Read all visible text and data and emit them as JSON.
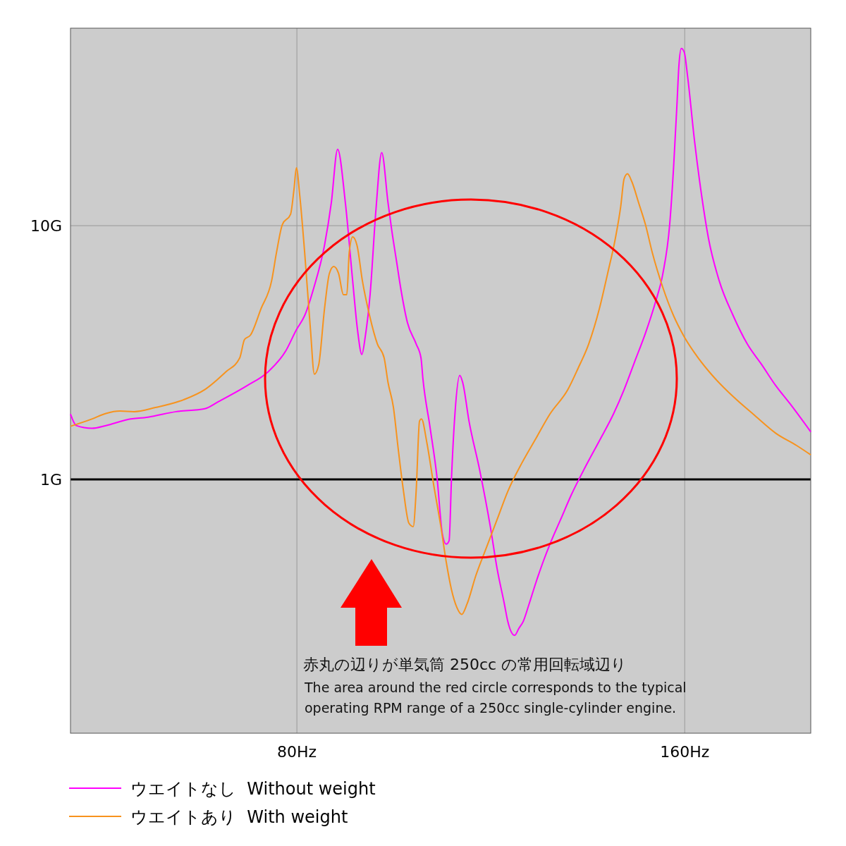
{
  "chart_data": {
    "type": "line",
    "xlim": [
      33.3,
      186
    ],
    "ylim": [
      0.1,
      60
    ],
    "log": "y",
    "grid": true,
    "legend": "bottom left",
    "marker": "none",
    "line_style": "solid",
    "xticks": [
      {
        "value": 80,
        "label": "80Hz"
      },
      {
        "value": 160,
        "label": "160Hz"
      }
    ],
    "yticks": [
      {
        "value": 1,
        "label": "1G"
      },
      {
        "value": 10,
        "label": "10G"
      }
    ],
    "ref_lines": [
      {
        "axis": "y",
        "value": 1,
        "color": "#000000"
      }
    ],
    "annotations": [
      "赤丸の辺りが単気筒 250cc の常用回転域辺り",
      "The area around the red circle corresponds to the typical operating RPM range of a 250cc single-cylinder engine."
    ],
    "series": [
      {
        "name": "ウエイトなし  Without weight",
        "color": "#ff00ff",
        "x": [
          33.3,
          34.5,
          37.7,
          40.6,
          45.0,
          49.3,
          55.1,
          61.0,
          63.9,
          69.7,
          74.0,
          77.7,
          79.9,
          81.6,
          83.5,
          85.7,
          87.1,
          88.4,
          90.0,
          91.5,
          92.5,
          93.4,
          94.1,
          95.1,
          96.3,
          97.5,
          98.8,
          99.6,
          100.5,
          101.4,
          102.8,
          104.6,
          105.6,
          106.0,
          107.5,
          108.9,
          110.0,
          110.8,
          111.4,
          111.9,
          112.6,
          113.6,
          114.2,
          115.5,
          117.7,
          119.9,
          121.3,
          122.8,
          123.5,
          124.9,
          125.8,
          126.7,
          127.9,
          129.3,
          130.8,
          132.2,
          134.4,
          136.6,
          139.5,
          142.4,
          145.3,
          147.5,
          149.7,
          151.9,
          154.0,
          155.5,
          156.9,
          157.7,
          158.4,
          158.8,
          159.3,
          159.9,
          160.6,
          162.0,
          163.5,
          164.9,
          167.1,
          170.0,
          172.9,
          175.9,
          178.8,
          181.7,
          186.0
        ],
        "values": [
          1.81,
          1.63,
          1.59,
          1.63,
          1.72,
          1.76,
          1.85,
          1.9,
          2.03,
          2.34,
          2.65,
          3.21,
          3.89,
          4.42,
          5.7,
          8.37,
          12.3,
          20.0,
          12.3,
          6.08,
          3.89,
          3.11,
          3.65,
          5.35,
          11.5,
          19.4,
          12.3,
          9.5,
          7.36,
          5.7,
          4.15,
          3.42,
          3.01,
          2.49,
          1.59,
          1.02,
          0.612,
          0.556,
          0.574,
          1.02,
          1.81,
          2.57,
          2.41,
          1.7,
          1.09,
          0.652,
          0.445,
          0.323,
          0.276,
          0.243,
          0.259,
          0.276,
          0.323,
          0.392,
          0.474,
          0.556,
          0.695,
          0.869,
          1.12,
          1.42,
          1.81,
          2.26,
          2.92,
          3.77,
          5.02,
          6.48,
          10.1,
          16.9,
          30.0,
          42.6,
          49.9,
          48.3,
          38.7,
          21.8,
          13.1,
          8.92,
          6.08,
          4.42,
          3.42,
          2.83,
          2.34,
          1.99,
          1.54
        ]
      },
      {
        "name": "ウエイトあり  With weight",
        "color": "#f7931e",
        "x": [
          33.3,
          37.7,
          40.6,
          43.5,
          46.4,
          50.8,
          56.6,
          61.0,
          65.3,
          68.2,
          69.2,
          70.4,
          72.6,
          74.8,
          75.8,
          77.0,
          78.7,
          79.4,
          79.9,
          80.6,
          81.6,
          82.8,
          83.6,
          84.5,
          85.7,
          86.7,
          87.6,
          88.6,
          89.6,
          90.3,
          90.8,
          91.5,
          92.4,
          93.5,
          95.0,
          96.6,
          98.0,
          98.8,
          99.9,
          100.9,
          102.0,
          103.1,
          104.0,
          104.6,
          105.3,
          105.7,
          106.8,
          108.2,
          109.7,
          110.8,
          111.9,
          113.0,
          114.0,
          115.1,
          116.9,
          119.1,
          121.3,
          123.5,
          126.4,
          129.3,
          132.2,
          135.9,
          138.0,
          140.2,
          142.4,
          144.1,
          145.7,
          146.8,
          147.5,
          148.2,
          149.1,
          150.5,
          151.9,
          153.3,
          155.5,
          157.7,
          159.9,
          162.8,
          165.7,
          170.0,
          174.4,
          178.8,
          183.1,
          186.0
        ],
        "values": [
          1.62,
          1.73,
          1.82,
          1.86,
          1.85,
          1.92,
          2.06,
          2.26,
          2.65,
          3.01,
          3.56,
          3.7,
          4.71,
          6.08,
          7.85,
          10.1,
          11.1,
          13.9,
          16.9,
          13.1,
          7.85,
          3.89,
          2.6,
          2.83,
          4.71,
          6.48,
          6.91,
          6.48,
          5.35,
          5.35,
          7.85,
          9.03,
          8.37,
          6.08,
          4.42,
          3.42,
          3.01,
          2.41,
          1.93,
          1.32,
          0.897,
          0.673,
          0.652,
          0.897,
          1.7,
          1.73,
          1.4,
          0.956,
          0.652,
          0.474,
          0.367,
          0.313,
          0.294,
          0.323,
          0.417,
          0.539,
          0.695,
          0.897,
          1.16,
          1.45,
          1.81,
          2.26,
          2.74,
          3.42,
          4.71,
          6.48,
          8.92,
          11.9,
          15.3,
          16.0,
          14.9,
          12.3,
          10.1,
          7.85,
          5.7,
          4.42,
          3.65,
          3.01,
          2.57,
          2.12,
          1.79,
          1.52,
          1.36,
          1.25
        ]
      }
    ]
  }
}
